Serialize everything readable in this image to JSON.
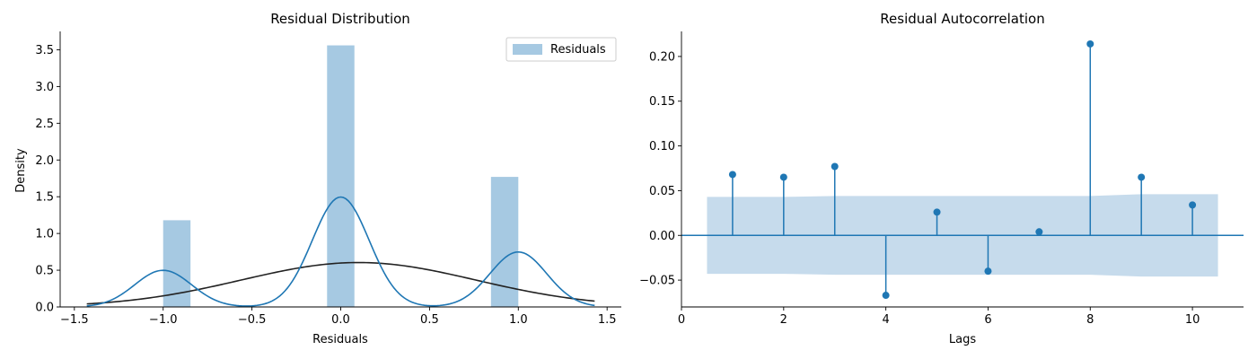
{
  "chart_data": [
    {
      "type": "bar",
      "title": "Residual Distribution",
      "xlabel": "Residuals",
      "ylabel": "Density",
      "xlim": [
        -1.58,
        1.58
      ],
      "ylim": [
        0,
        3.75
      ],
      "xticks": [
        -1.5,
        -1.0,
        -0.5,
        0.0,
        0.5,
        1.0,
        1.5
      ],
      "xtick_labels": [
        "−1.5",
        "−1.0",
        "−0.5",
        "0.0",
        "0.5",
        "1.0",
        "1.5"
      ],
      "yticks": [
        0.0,
        0.5,
        1.0,
        1.5,
        2.0,
        2.5,
        3.0,
        3.5
      ],
      "ytick_labels": [
        "0.0",
        "0.5",
        "1.0",
        "1.5",
        "2.0",
        "2.5",
        "3.0",
        "3.5"
      ],
      "histogram": {
        "name": "Residuals",
        "color": "#a6c9e2",
        "bins": [
          {
            "x0": -1.0,
            "x1": -0.846,
            "density": 1.18
          },
          {
            "x0": -0.077,
            "x1": 0.077,
            "density": 3.56
          },
          {
            "x0": 0.846,
            "x1": 1.0,
            "density": 1.77
          }
        ]
      },
      "kde_line": {
        "color": "#1f77b4",
        "components": [
          {
            "mean": -1.0,
            "sd": 0.16,
            "weight": 0.2
          },
          {
            "mean": 0.0,
            "sd": 0.16,
            "weight": 0.6
          },
          {
            "mean": 1.0,
            "sd": 0.16,
            "weight": 0.3
          }
        ],
        "x_range": [
          -1.43,
          1.43
        ]
      },
      "normal_fit_line": {
        "color": "#222222",
        "mean": 0.1,
        "sd": 0.66,
        "x_range": [
          -1.43,
          1.43
        ]
      },
      "legend": {
        "position": "top-right",
        "entries": [
          "Residuals"
        ]
      },
      "grid": false
    },
    {
      "type": "stem",
      "title": "Residual Autocorrelation",
      "xlabel": "Lags",
      "ylabel": "",
      "xlim": [
        0,
        11
      ],
      "ylim": [
        -0.08,
        0.228
      ],
      "xticks": [
        0,
        2,
        4,
        6,
        8,
        10
      ],
      "xtick_labels": [
        "0",
        "2",
        "4",
        "6",
        "8",
        "10"
      ],
      "yticks": [
        -0.05,
        0.0,
        0.05,
        0.1,
        0.15,
        0.2
      ],
      "ytick_labels": [
        "−0.05",
        "0.00",
        "0.05",
        "0.10",
        "0.15",
        "0.20"
      ],
      "lags": [
        1,
        2,
        3,
        4,
        5,
        6,
        7,
        8,
        9,
        10
      ],
      "values": [
        0.068,
        0.065,
        0.077,
        -0.067,
        0.026,
        -0.04,
        0.004,
        0.214,
        0.065,
        0.034
      ],
      "color": "#1f77b4",
      "confidence_band": {
        "color": "#c6dbec",
        "x": [
          0.5,
          1,
          2,
          3,
          4,
          5,
          6,
          7,
          8,
          9,
          10,
          10.5
        ],
        "upper": [
          0.043,
          0.043,
          0.043,
          0.044,
          0.044,
          0.044,
          0.044,
          0.044,
          0.044,
          0.046,
          0.046,
          0.046
        ],
        "lower": [
          -0.043,
          -0.043,
          -0.043,
          -0.044,
          -0.044,
          -0.044,
          -0.044,
          -0.044,
          -0.044,
          -0.046,
          -0.046,
          -0.046
        ]
      },
      "grid": false
    }
  ]
}
